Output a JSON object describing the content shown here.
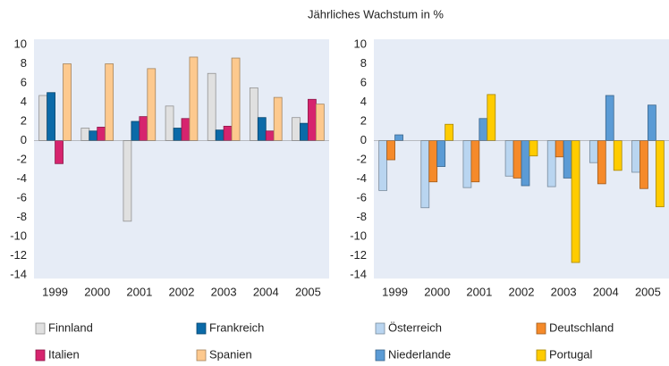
{
  "title": "Jährliches Wachstum in %",
  "chart_data": [
    {
      "type": "bar",
      "categories": [
        "1999",
        "2000",
        "2001",
        "2002",
        "2003",
        "2004",
        "2005"
      ],
      "series": [
        {
          "name": "Finnland",
          "color": "#e0e0e0",
          "values": [
            4.7,
            1.3,
            -8.4,
            3.6,
            7.0,
            5.5,
            2.4
          ]
        },
        {
          "name": "Frankreich",
          "color": "#0b6aa8",
          "values": [
            5.0,
            1.0,
            2.0,
            1.3,
            1.1,
            2.4,
            1.8
          ]
        },
        {
          "name": "Italien",
          "color": "#d6246e",
          "values": [
            -2.4,
            1.4,
            2.5,
            2.3,
            1.5,
            1.0,
            4.3
          ]
        },
        {
          "name": "Spanien",
          "color": "#fdc98e",
          "values": [
            8.0,
            8.0,
            7.5,
            8.7,
            8.6,
            4.5,
            3.8
          ]
        }
      ],
      "ylim": [
        -14,
        10
      ],
      "yticks": [
        -14,
        -12,
        -10,
        -8,
        -6,
        -4,
        -2,
        0,
        2,
        4,
        6,
        8,
        10
      ]
    },
    {
      "type": "bar",
      "categories": [
        "1999",
        "2000",
        "2001",
        "2002",
        "2003",
        "2004",
        "2005"
      ],
      "series": [
        {
          "name": "Österreich",
          "color": "#b9d5f0",
          "values": [
            -5.2,
            -7.0,
            -4.9,
            -3.7,
            -4.8,
            -2.3,
            -3.3
          ]
        },
        {
          "name": "Deutschland",
          "color": "#f58a2a",
          "values": [
            -2.0,
            -4.3,
            -4.3,
            -3.9,
            -1.7,
            -4.5,
            -5.0
          ]
        },
        {
          "name": "Niederlande",
          "color": "#5b9bd5",
          "values": [
            0.6,
            -2.7,
            2.3,
            -4.7,
            -3.9,
            4.7,
            3.7
          ]
        },
        {
          "name": "Portugal",
          "color": "#ffcc00",
          "values": [
            null,
            1.7,
            4.8,
            -1.6,
            -12.7,
            -3.1,
            -6.9
          ]
        }
      ],
      "ylim": [
        -14,
        10
      ],
      "yticks": [
        -14,
        -12,
        -10,
        -8,
        -6,
        -4,
        -2,
        0,
        2,
        4,
        6,
        8,
        10
      ]
    }
  ]
}
